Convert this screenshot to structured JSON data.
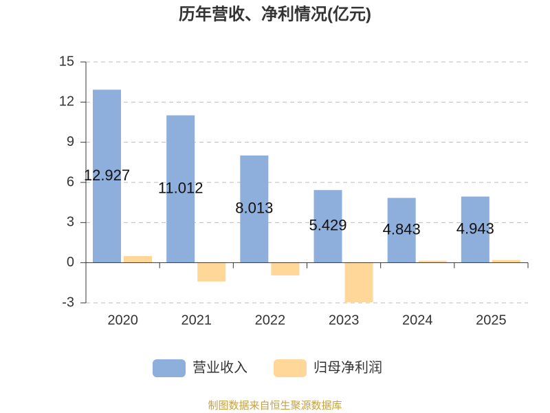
{
  "chart_data": {
    "type": "bar",
    "title": "历年营收、净利情况(亿元)",
    "categories": [
      "2020",
      "2021",
      "2022",
      "2023",
      "2024",
      "2025"
    ],
    "series": [
      {
        "name": "营业收入",
        "color": "#8eaedc",
        "values": [
          12.927,
          11.012,
          8.013,
          5.429,
          4.843,
          4.943
        ],
        "show_labels": true
      },
      {
        "name": "归母净利润",
        "color": "#ffd899",
        "values": [
          0.5,
          -1.4,
          -0.95,
          -2.95,
          0.15,
          0.2
        ],
        "show_labels": false
      }
    ],
    "ylim": [
      -3,
      15
    ],
    "yticks": [
      -3,
      0,
      3,
      6,
      9,
      12,
      15
    ],
    "grid": true,
    "legend": "bottom",
    "source": "制图数据来自恒生聚源数据库"
  }
}
